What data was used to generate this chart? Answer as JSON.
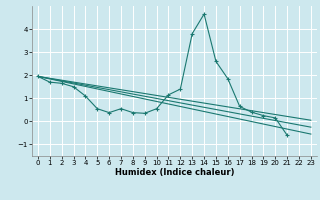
{
  "xlabel": "Humidex (Indice chaleur)",
  "background_color": "#cde8ee",
  "grid_color": "#ffffff",
  "line_color": "#1a7870",
  "xlim": [
    -0.5,
    23.5
  ],
  "ylim": [
    -1.5,
    5.0
  ],
  "yticks": [
    -1,
    0,
    1,
    2,
    3,
    4
  ],
  "xticks": [
    0,
    1,
    2,
    3,
    4,
    5,
    6,
    7,
    8,
    9,
    10,
    11,
    12,
    13,
    14,
    15,
    16,
    17,
    18,
    19,
    20,
    21,
    22,
    23
  ],
  "main_series": {
    "x": [
      0,
      1,
      2,
      3,
      4,
      5,
      6,
      7,
      8,
      9,
      10,
      11,
      12,
      13,
      14,
      15,
      16,
      17,
      18,
      19,
      20,
      21
    ],
    "y": [
      1.95,
      1.7,
      1.65,
      1.5,
      1.1,
      0.55,
      0.38,
      0.55,
      0.38,
      0.35,
      0.55,
      1.15,
      1.4,
      3.8,
      4.65,
      2.6,
      1.85,
      0.65,
      0.4,
      0.25,
      0.15,
      -0.6
    ]
  },
  "ref_lines": [
    {
      "x": [
        0,
        23
      ],
      "y": [
        1.95,
        -0.55
      ]
    },
    {
      "x": [
        0,
        23
      ],
      "y": [
        1.95,
        -0.25
      ]
    },
    {
      "x": [
        0,
        23
      ],
      "y": [
        1.95,
        0.05
      ]
    }
  ]
}
